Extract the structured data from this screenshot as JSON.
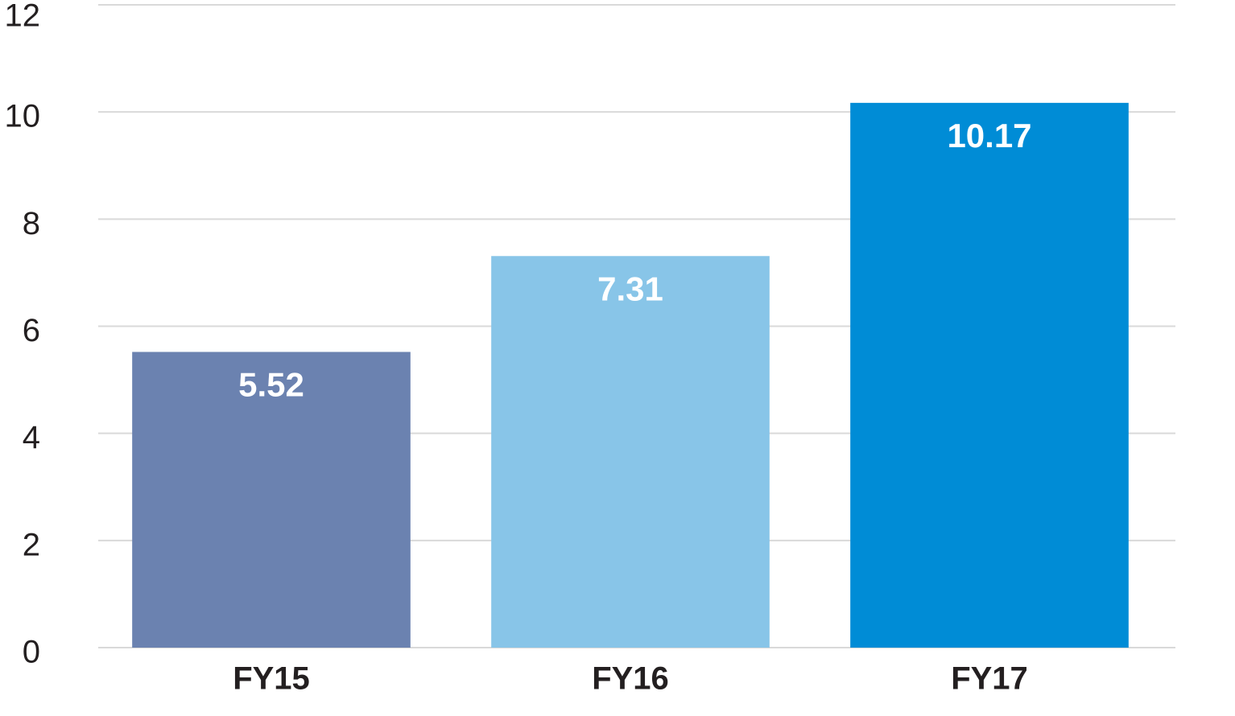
{
  "chart_data": {
    "type": "bar",
    "categories": [
      "FY15",
      "FY16",
      "FY17"
    ],
    "values": [
      5.52,
      7.31,
      10.17
    ],
    "colors": [
      "#6b82b0",
      "#88c5e8",
      "#008cd6"
    ],
    "ylim": [
      0,
      12
    ],
    "yticks": [
      0,
      2,
      4,
      6,
      8,
      10,
      12
    ],
    "grid": true
  }
}
